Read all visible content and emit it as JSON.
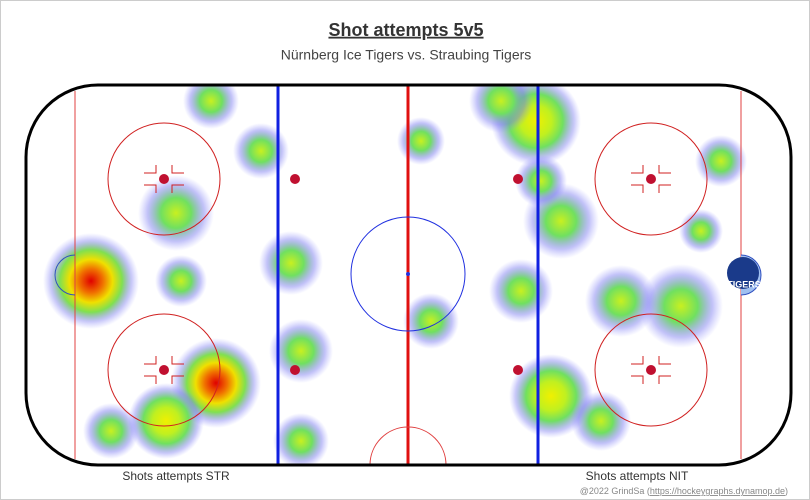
{
  "title": "Shot attempts 5v5",
  "subtitle": "Nürnberg Ice Tigers vs. Straubing Tigers",
  "left_label": "Shots attempts STR",
  "right_label": "Shots attempts NIT",
  "credit": {
    "prefix": "@2022 GrindSa (",
    "link": "https://hockeygraphs.dynamop.de",
    "suffix": ")"
  }
}
